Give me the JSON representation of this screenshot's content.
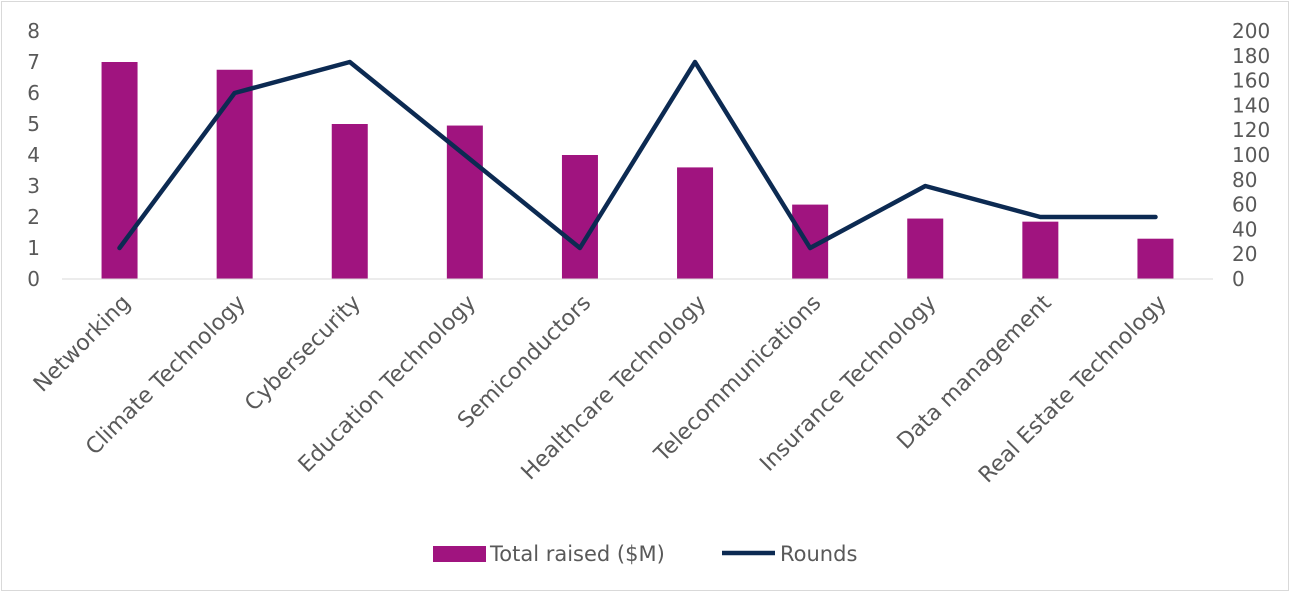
{
  "chart_data": {
    "type": "bar+line",
    "categories": [
      "Networking",
      "Climate Technology",
      "Cybersecurity",
      "Education Technology",
      "Semiconductors",
      "Healthcare Technology",
      "Telecommunications",
      "Insurance Technology",
      "Data management",
      "Real Estate Technology"
    ],
    "series": [
      {
        "name": "Total raised ($M)",
        "type": "bar",
        "axis": "left",
        "color": "#a0147f",
        "values": [
          7.0,
          6.75,
          5.0,
          4.95,
          4.0,
          3.6,
          2.4,
          1.95,
          1.85,
          1.3
        ]
      },
      {
        "name": "Rounds",
        "type": "line",
        "axis": "right",
        "color": "#0c2a52",
        "values": [
          25,
          150,
          175,
          100,
          25,
          175,
          25,
          75,
          50,
          50
        ]
      }
    ],
    "y_left": {
      "min": 0,
      "max": 8,
      "ticks": [
        "0",
        "1",
        "2",
        "3",
        "4",
        "5",
        "6",
        "7",
        "8"
      ]
    },
    "y_right": {
      "min": 0,
      "max": 200,
      "ticks": [
        "0",
        "20",
        "40",
        "60",
        "80",
        "100",
        "120",
        "140",
        "160",
        "180",
        "200"
      ]
    },
    "grid": false,
    "legend_position": "bottom"
  }
}
